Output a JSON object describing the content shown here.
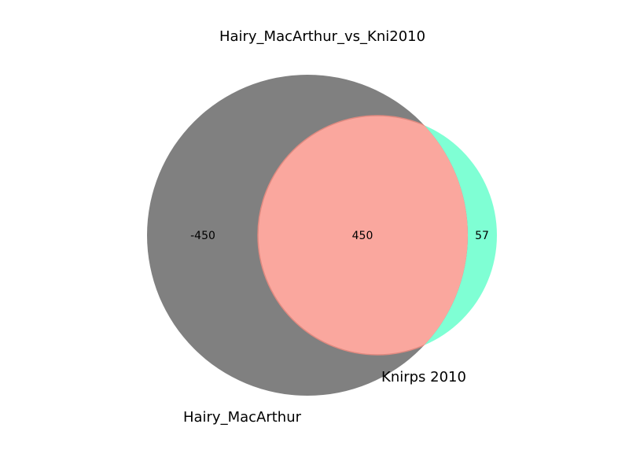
{
  "diagram": {
    "type": "venn2",
    "title": "Hairy_MacArthur_vs_Kni2010",
    "sets": [
      {
        "name": "Hairy_MacArthur",
        "color": "#808080"
      },
      {
        "name": "Knirps 2010",
        "color": "#7FFFD4"
      }
    ],
    "regions": {
      "only_a": "-450",
      "intersection": "450",
      "only_b": "57"
    },
    "intersection_color": "#FAA79E",
    "intersection_stroke": "#E08A80"
  }
}
